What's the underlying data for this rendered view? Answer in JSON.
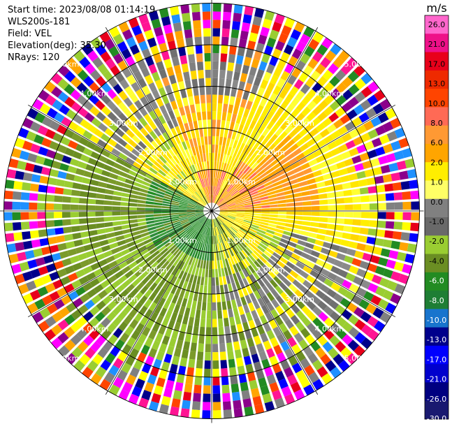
{
  "header": {
    "start_time": "Start time: 2023/08/08 01:14:19",
    "instrument": "WLS200s-181",
    "field": "Field: VEL",
    "elevation": "Elevation(deg): 35.30",
    "nrays": "NRays: 120"
  },
  "chart_data": {
    "type": "heatmap",
    "projection": "polar-ppi",
    "nrays": 120,
    "grid": true,
    "range_rings_km": [
      1.0,
      2.0,
      3.0,
      4.0,
      5.0
    ],
    "range_ring_labels": [
      "1.00km",
      "2.00km",
      "3.00km",
      "4.00km",
      "5.00km"
    ],
    "colorbar": {
      "unit": "m/s",
      "ticks": [
        "26.0",
        "21.0",
        "17.0",
        "13.0",
        "10.0",
        "8.0",
        "6.0",
        "2.0",
        "1.0",
        "0.0",
        "-1.0",
        "-2.0",
        "-4.0",
        "-6.0",
        "-8.0",
        "-10.0",
        "-13.0",
        "-17.0",
        "-21.0",
        "-26.0",
        "-30.0"
      ],
      "colors": [
        "#ff66cc",
        "#ee1188",
        "#e8001a",
        "#ee2a00",
        "#ff4400",
        "#ff6a55",
        "#ff9933",
        "#ffa500",
        "#ffee00",
        "#ffff66",
        "#808080",
        "#696969",
        "#9acd32",
        "#6b8e23",
        "#228b22",
        "#1e7e34",
        "#1874cd",
        "#00008b",
        "#0000ff",
        "#0000cd",
        "#000080",
        "#191970"
      ]
    }
  }
}
